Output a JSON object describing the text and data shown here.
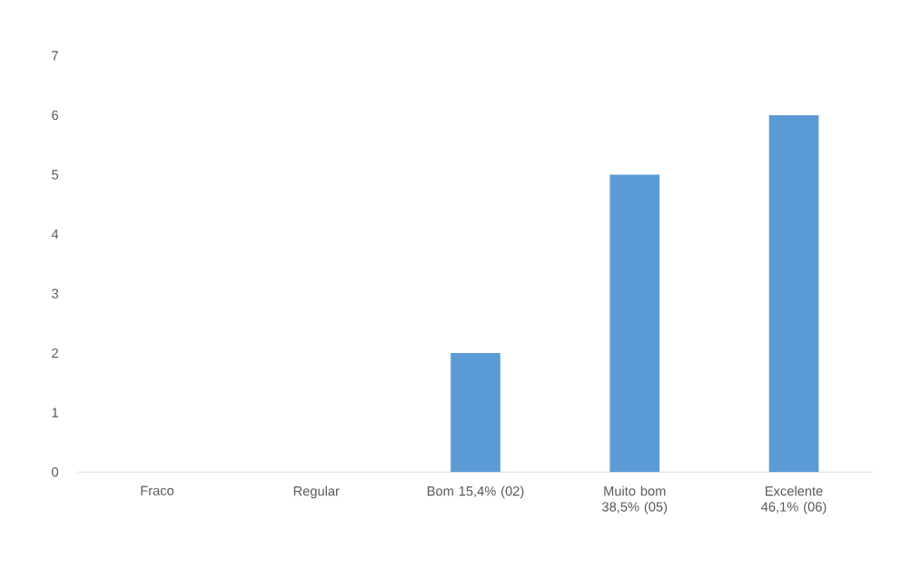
{
  "chart_data": {
    "type": "bar",
    "categories": [
      "Fraco",
      "Regular",
      "Bom 15,4% (02)",
      "Muito bom 38,5% (05)",
      "Excelente 46,1% (06)"
    ],
    "values": [
      0,
      0,
      2,
      5,
      6
    ],
    "color": "#5b9bd5",
    "ylim": [
      0,
      7
    ],
    "yticks": [
      0,
      1,
      2,
      3,
      4,
      5,
      6,
      7
    ],
    "grid": false
  }
}
